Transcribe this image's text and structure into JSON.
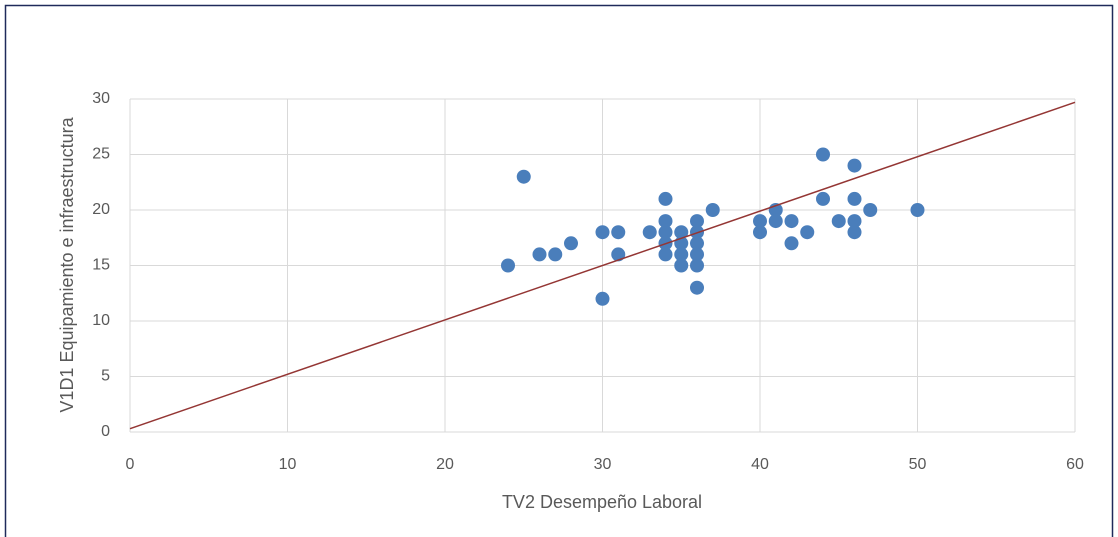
{
  "chart_data": {
    "type": "scatter",
    "x_label": "TV2 Desempeño Laboral",
    "y_label": "V1D1 Equipamiento e infraestructura",
    "series": [
      {
        "color": "#4a7ebb",
        "x": [
          24,
          25,
          26,
          27,
          28,
          30,
          30,
          31,
          31,
          33,
          34,
          34,
          34,
          34,
          34,
          35,
          35,
          35,
          35,
          36,
          36,
          36,
          36,
          36,
          36,
          37,
          40,
          40,
          41,
          41,
          42,
          42,
          43,
          44,
          44,
          45,
          46,
          46,
          46,
          46,
          47,
          50
        ],
        "values": [
          15,
          23,
          16,
          16,
          17,
          18,
          12,
          18,
          16,
          18,
          21,
          19,
          18,
          17,
          16,
          18,
          17,
          16,
          15,
          19,
          18,
          17,
          16,
          15,
          13,
          20,
          19,
          18,
          20,
          19,
          19,
          17,
          18,
          25,
          21,
          19,
          24,
          21,
          19,
          18,
          20,
          20
        ]
      }
    ],
    "trendline": {
      "color": "#943634",
      "x": [
        0,
        60
      ],
      "values": [
        0.3,
        29.7
      ]
    },
    "xlim": [
      0,
      60
    ],
    "xticks": [
      0,
      10,
      20,
      30,
      40,
      50,
      60
    ],
    "ylim": [
      0,
      30
    ],
    "yticks": [
      0,
      5,
      10,
      15,
      20,
      25,
      30
    ],
    "grid": true
  }
}
